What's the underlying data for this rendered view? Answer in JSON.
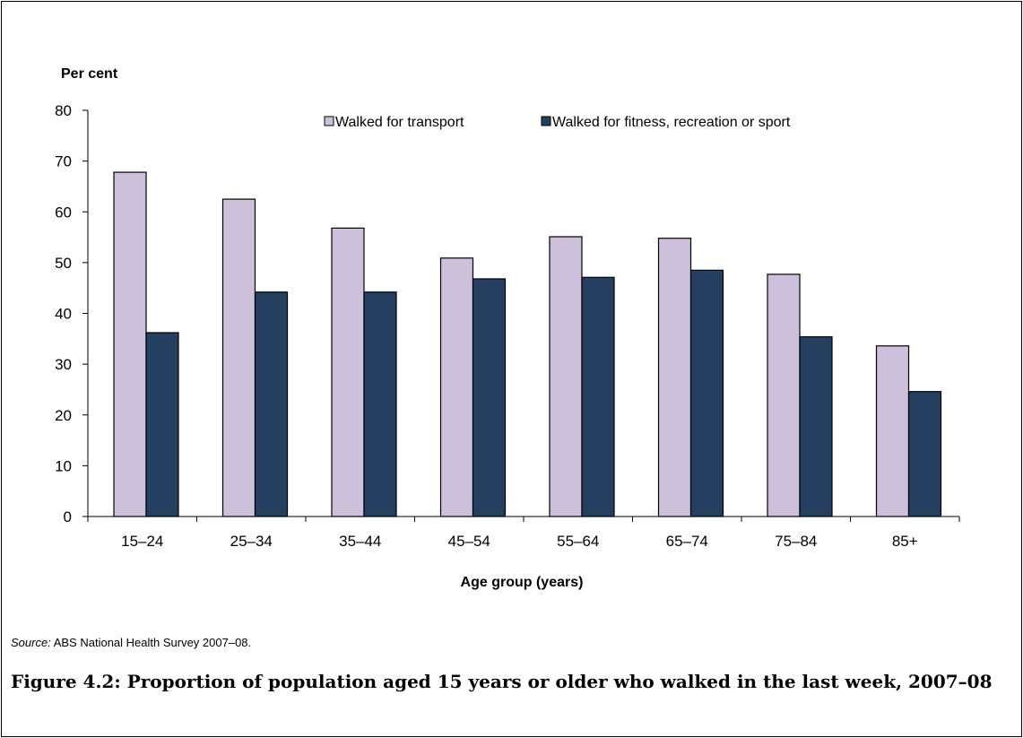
{
  "chart_data": {
    "type": "bar",
    "ylabel": "Per cent",
    "xlabel": "Age group (years)",
    "ylim": [
      0,
      80
    ],
    "yticks": [
      0,
      10,
      20,
      30,
      40,
      50,
      60,
      70,
      80
    ],
    "categories": [
      "15–24",
      "25–34",
      "35–44",
      "45–54",
      "55–64",
      "65–74",
      "75–84",
      "85+"
    ],
    "series": [
      {
        "name": "Walked for transport",
        "color": "#ccc0da",
        "values": [
          67.8,
          62.5,
          56.8,
          50.9,
          55.1,
          54.8,
          47.7,
          33.6
        ]
      },
      {
        "name": "Walked for fitness, recreation or sport",
        "color": "#243f60",
        "values": [
          36.2,
          44.2,
          44.2,
          46.8,
          47.1,
          48.5,
          35.4,
          24.6
        ]
      }
    ],
    "legend_position": "top",
    "grid": false
  },
  "source": {
    "label": "Source:",
    "text": "ABS National Health Survey 2007–08."
  },
  "caption": "Figure 4.2: Proportion of population aged 15 years or older who walked in the last week, 2007–08"
}
